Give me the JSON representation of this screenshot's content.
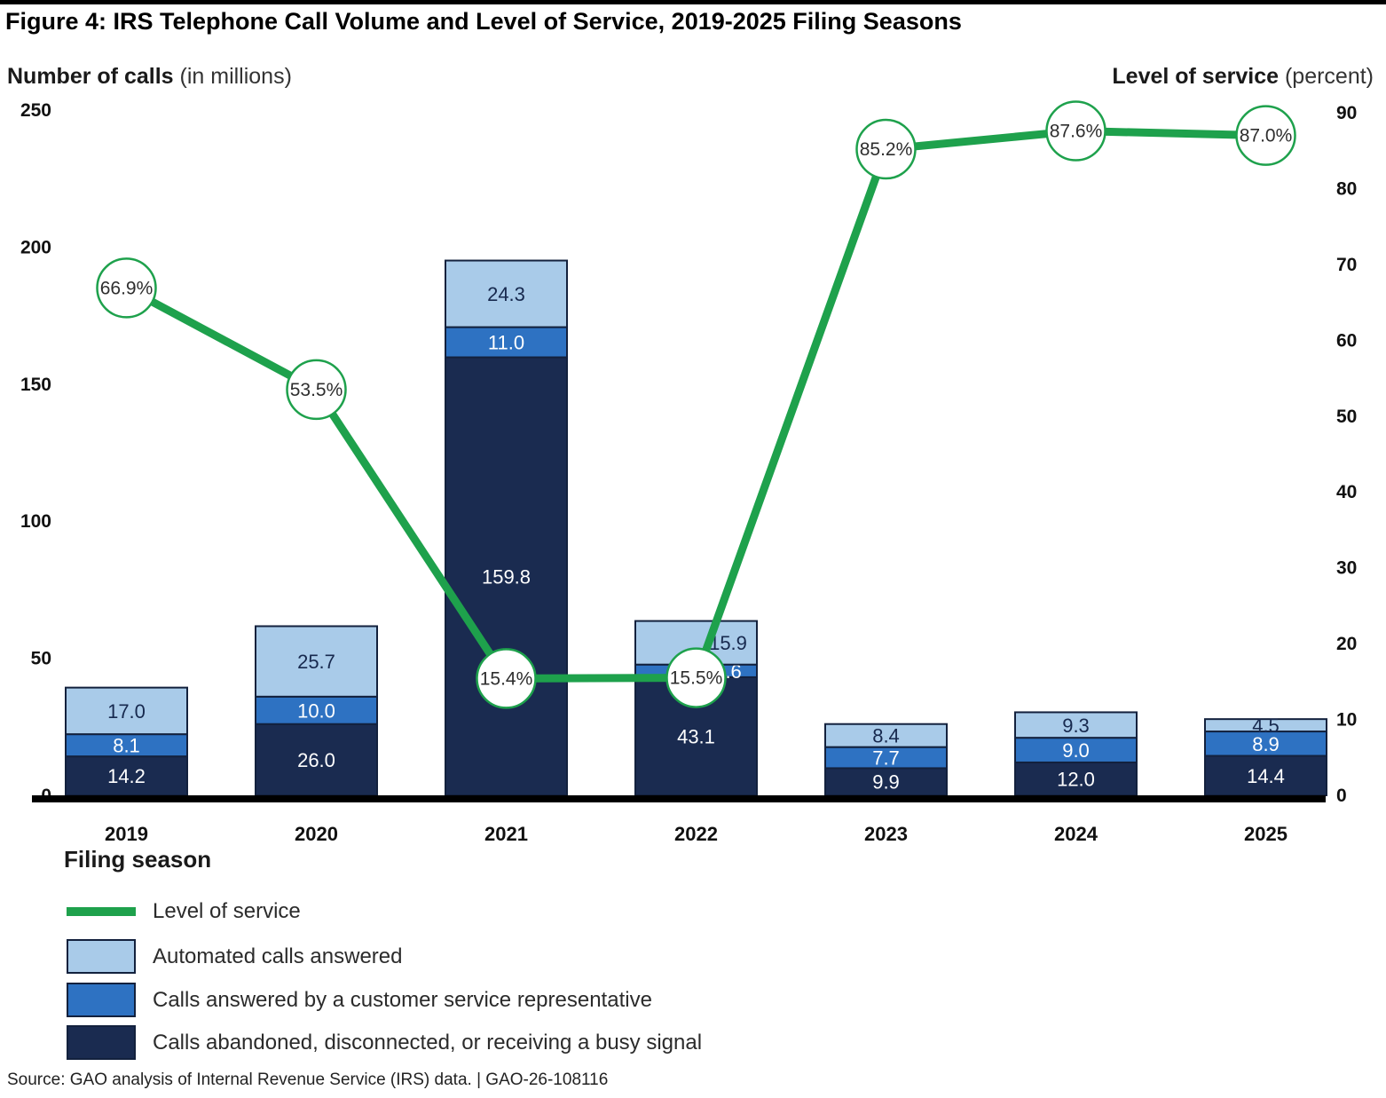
{
  "page": {
    "title": "Figure 4: IRS Telephone Call Volume and Level of Service, 2019-2025 Filing Seasons",
    "source_line": "Source: GAO analysis of Internal Revenue Service (IRS) data.  |  GAO-26-108116"
  },
  "axes": {
    "left_title_bold": "Number of calls",
    "left_title_rest": " (in millions)",
    "right_title_bold": "Level of service",
    "right_title_rest": " (percent)",
    "x_title": "Filing season"
  },
  "chart_data": {
    "type": "combo: stacked bar (calls, millions) + line (level of service, percent)",
    "categories": [
      "2019",
      "2020",
      "2021",
      "2022",
      "2023",
      "2024",
      "2025"
    ],
    "series": [
      {
        "key": "abandoned",
        "name": "Calls abandoned, disconnected, or receiving a busy signal",
        "color": "#1a2b50",
        "label_color": "#ffffff",
        "values": [
          14.2,
          26.0,
          159.8,
          43.1,
          9.9,
          12.0,
          14.4
        ],
        "display_values": [
          "14.2",
          "26.0",
          "159.8",
          "43.1",
          "9.9",
          "12.0",
          "14.4"
        ],
        "label_dx": [
          0,
          0,
          0,
          0,
          0,
          0,
          0
        ]
      },
      {
        "key": "csr",
        "name": "Calls answered by a customer service representative",
        "color": "#2e72c2",
        "label_color": "#ffffff",
        "values": [
          8.1,
          10.0,
          11.0,
          4.6,
          7.7,
          9.0,
          8.9
        ],
        "display_values": [
          "8.1",
          "10.0",
          "11.0",
          "4.6",
          "7.7",
          "9.0",
          "8.9"
        ],
        "label_dx": [
          0,
          0,
          0,
          36,
          0,
          0,
          0
        ]
      },
      {
        "key": "automated",
        "name": "Automated calls answered",
        "color": "#a9cbe9",
        "label_color": "#17294e",
        "values": [
          17.0,
          25.7,
          24.3,
          15.9,
          8.4,
          9.3,
          4.5
        ],
        "display_values": [
          "17.0",
          "25.7",
          "24.3",
          "15.9",
          "8.4",
          "9.3",
          "4.5"
        ],
        "label_dx": [
          0,
          0,
          0,
          36,
          0,
          0,
          0
        ]
      }
    ],
    "line_series": {
      "key": "los",
      "name": "Level of service",
      "color": "#1ea14c",
      "values": [
        66.9,
        53.5,
        15.4,
        15.5,
        85.2,
        87.6,
        87.0
      ],
      "display_values": [
        "66.9%",
        "53.5%",
        "15.4%",
        "15.5%",
        "85.2%",
        "87.6%",
        "87.0%"
      ]
    },
    "left_axis": {
      "title": "Number of calls (in millions)",
      "ticks": [
        0,
        50,
        100,
        150,
        200,
        250
      ],
      "range": [
        0,
        250
      ]
    },
    "right_axis": {
      "title": "Level of service (percent)",
      "ticks": [
        0,
        10,
        20,
        30,
        40,
        50,
        60,
        70,
        80,
        90
      ],
      "range": [
        0,
        90
      ]
    },
    "xlabel": "Filing season",
    "grid": false,
    "legend_position": "bottom-left"
  }
}
